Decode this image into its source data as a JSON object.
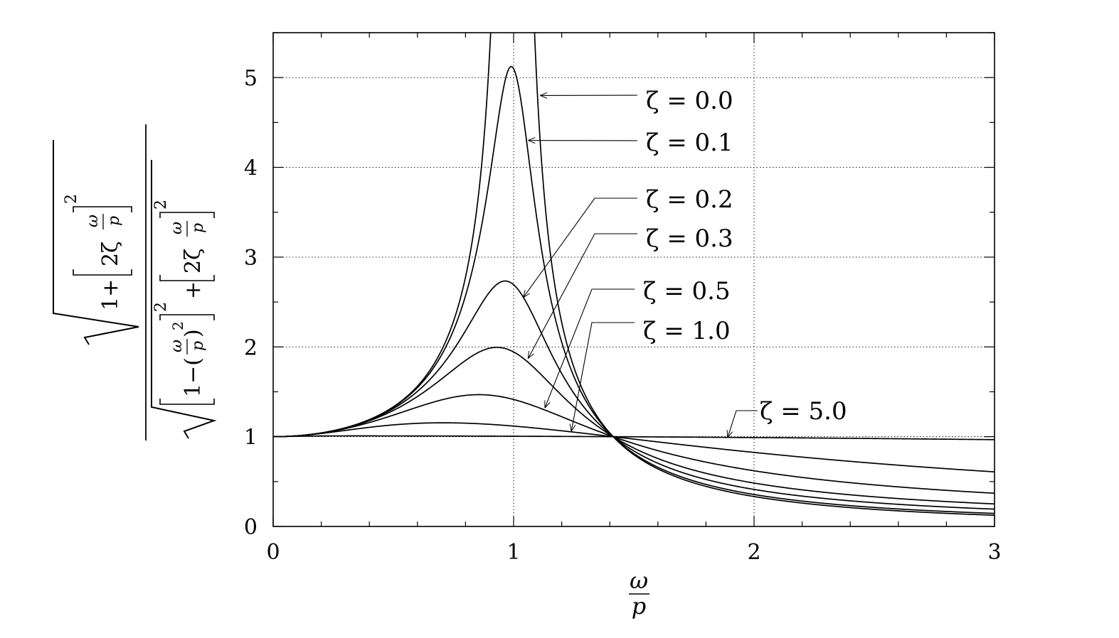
{
  "chart_data": {
    "type": "line",
    "xlabel": {
      "num": "ω",
      "den": "p"
    },
    "ylabel": {
      "numer": {
        "one": "1+",
        "bracket_content": "2ζ",
        "frac_num": "ω",
        "frac_den": "p",
        "exp": "2"
      },
      "denom": {
        "one": "1−(",
        "frac_num": "ω",
        "frac_den": "p",
        "close": ")",
        "inner_exp": "2",
        "outer_exp": "2",
        "plus": "+",
        "bracket_content": "2ζ",
        "frac2_num": "ω",
        "frac2_den": "p",
        "exp2": "2"
      }
    },
    "xlim": [
      0,
      3
    ],
    "ylim": [
      0,
      5.5
    ],
    "xticks": [
      {
        "value": 0,
        "label": "0"
      },
      {
        "value": 1,
        "label": "1"
      },
      {
        "value": 2,
        "label": "2"
      },
      {
        "value": 3,
        "label": "3"
      }
    ],
    "yticks": [
      {
        "value": 0,
        "label": "0"
      },
      {
        "value": 1,
        "label": "1"
      },
      {
        "value": 2,
        "label": "2"
      },
      {
        "value": 3,
        "label": "3"
      },
      {
        "value": 4,
        "label": "4"
      },
      {
        "value": 5,
        "label": "5"
      }
    ],
    "grid": true,
    "function": "sqrt(1+(2*zeta*r)^2) / sqrt((1-r^2)^2 + (2*zeta*r)^2)",
    "series": [
      {
        "zeta": 0.0,
        "label": "ζ = 0.0",
        "peak": null
      },
      {
        "zeta": 0.1,
        "label": "ζ = 0.1",
        "peak": {
          "x": 0.99,
          "y": 5.12
        }
      },
      {
        "zeta": 0.2,
        "label": "ζ = 0.2",
        "peak": {
          "x": 0.97,
          "y": 2.74
        }
      },
      {
        "zeta": 0.3,
        "label": "ζ = 0.3",
        "peak": {
          "x": 0.93,
          "y": 2.0
        }
      },
      {
        "zeta": 0.5,
        "label": "ζ = 0.5",
        "peak": {
          "x": 0.85,
          "y": 1.47
        }
      },
      {
        "zeta": 1.0,
        "label": "ζ = 1.0",
        "peak": {
          "x": 0.7,
          "y": 1.15
        }
      },
      {
        "zeta": 5.0,
        "label": "ζ = 5.0",
        "peak": null
      }
    ],
    "annotations": [
      {
        "series": 0,
        "text": "ζ = 0.0",
        "point": {
          "x": 1.11,
          "y": 4.8
        }
      },
      {
        "series": 1,
        "text": "ζ = 0.1",
        "point": {
          "x": 1.06,
          "y": 4.3
        }
      },
      {
        "series": 2,
        "text": "ζ = 0.2",
        "point": {
          "x": 1.04,
          "y": 2.55
        }
      },
      {
        "series": 3,
        "text": "ζ = 0.3",
        "point": {
          "x": 1.06,
          "y": 1.87
        }
      },
      {
        "series": 4,
        "text": "ζ = 0.5",
        "point": {
          "x": 1.13,
          "y": 1.32
        }
      },
      {
        "series": 5,
        "text": "ζ = 1.0",
        "point": {
          "x": 1.24,
          "y": 1.06
        }
      },
      {
        "series": 6,
        "text": "ζ = 5.0",
        "point": {
          "x": 1.89,
          "y": 0.99
        }
      }
    ]
  }
}
